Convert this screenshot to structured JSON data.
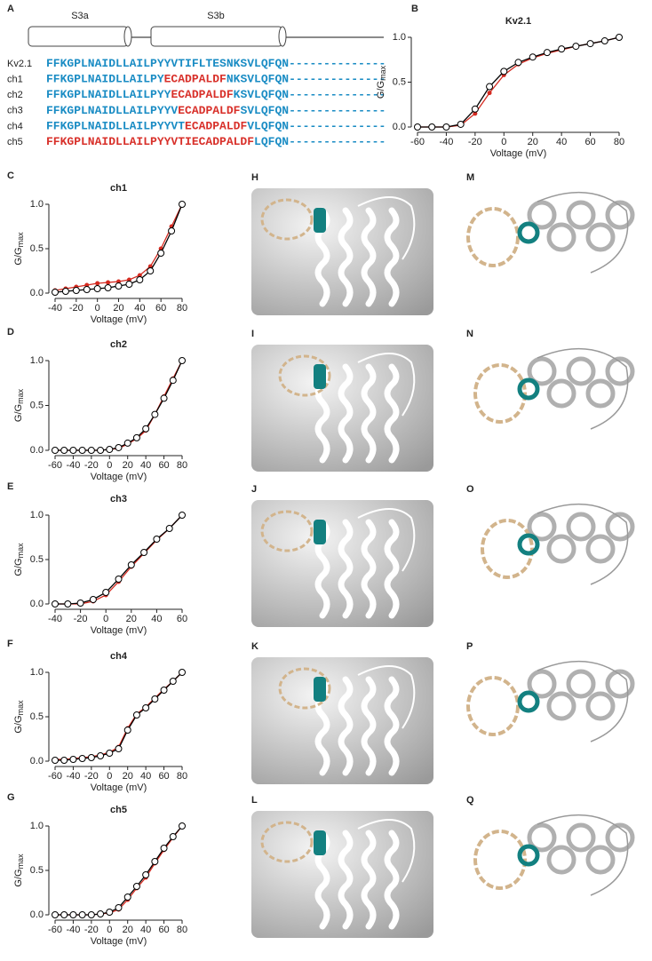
{
  "alignment": {
    "panel": "A",
    "domains": [
      "S3a",
      "S3b"
    ],
    "rows": [
      {
        "name": "Kv2.1",
        "segments": [
          {
            "text": "FFKGPLNAIDLLAILPYYVTIFLTESNKSVLQFQN",
            "color": "#1a8cc4"
          },
          {
            "text": "--------------",
            "color": "#1a8cc4"
          }
        ]
      },
      {
        "name": "ch1",
        "segments": [
          {
            "text": "FFKGPLNAIDLLAILPY",
            "color": "#1a8cc4"
          },
          {
            "text": "ECADPALDF",
            "color": "#d8302a"
          },
          {
            "text": "NKSVLQFQN",
            "color": "#1a8cc4"
          },
          {
            "text": "--------------",
            "color": "#1a8cc4"
          }
        ]
      },
      {
        "name": "ch2",
        "segments": [
          {
            "text": "FFKGPLNAIDLLAILPYY",
            "color": "#1a8cc4"
          },
          {
            "text": "ECADPALDF",
            "color": "#d8302a"
          },
          {
            "text": "KSVLQFQN",
            "color": "#1a8cc4"
          },
          {
            "text": "--------------",
            "color": "#1a8cc4"
          }
        ]
      },
      {
        "name": "ch3",
        "segments": [
          {
            "text": "FFKGPLNAIDLLAILPYYV",
            "color": "#1a8cc4"
          },
          {
            "text": "ECADPALDF",
            "color": "#d8302a"
          },
          {
            "text": "SVLQFQN",
            "color": "#1a8cc4"
          },
          {
            "text": "--------------",
            "color": "#1a8cc4"
          }
        ]
      },
      {
        "name": "ch4",
        "segments": [
          {
            "text": "FFKGPLNAIDLLAILPYYVT",
            "color": "#1a8cc4"
          },
          {
            "text": "ECADPALDF",
            "color": "#d8302a"
          },
          {
            "text": "VLQFQN",
            "color": "#1a8cc4"
          },
          {
            "text": "--------------",
            "color": "#1a8cc4"
          }
        ]
      },
      {
        "name": "ch5",
        "segments": [
          {
            "text": "FFKGPLNAIDLLAILPYYVTI",
            "color": "#d8302a"
          },
          {
            "text": "ECADPALDF",
            "color": "#d8302a"
          },
          {
            "text": "LQFQN",
            "color": "#1a8cc4"
          },
          {
            "text": "--------------",
            "color": "#1a8cc4"
          }
        ]
      }
    ]
  },
  "chart_data": [
    {
      "type": "line",
      "panel": "B",
      "title": "Kv2.1",
      "xlabel": "Voltage (mV)",
      "ylabel": "G/G",
      "ylabel_sub": "max",
      "x": [
        -60,
        -50,
        -40,
        -30,
        -20,
        -10,
        0,
        10,
        20,
        30,
        40,
        50,
        60,
        70,
        80
      ],
      "xlim": [
        -60,
        80
      ],
      "xticks": [
        -60,
        -40,
        -20,
        0,
        20,
        40,
        60,
        80
      ],
      "ylim": [
        0,
        1
      ],
      "yticks": [
        {
          "value": 0,
          "label": "0.0"
        },
        {
          "value": 0.5,
          "label": "0.5"
        },
        {
          "value": 1,
          "label": "1.0"
        }
      ],
      "series": [
        {
          "color": "#d42a20",
          "values": [
            0,
            0,
            0,
            0.02,
            0.15,
            0.38,
            0.58,
            0.7,
            0.77,
            0.82,
            0.86,
            0.9,
            0.93,
            0.96,
            1.0
          ]
        },
        {
          "color": "#000000",
          "marker": "circle",
          "values": [
            0,
            0,
            0,
            0.03,
            0.2,
            0.45,
            0.62,
            0.72,
            0.78,
            0.83,
            0.87,
            0.9,
            0.93,
            0.96,
            1.0
          ]
        }
      ]
    },
    {
      "type": "line",
      "panel": "C",
      "title": "ch1",
      "xlabel": "Voltage (mV)",
      "ylabel": "G/G",
      "ylabel_sub": "max",
      "x": [
        -40,
        -30,
        -20,
        -10,
        0,
        10,
        20,
        30,
        40,
        50,
        60,
        70,
        80
      ],
      "xlim": [
        -40,
        80
      ],
      "xticks": [
        -40,
        -20,
        0,
        20,
        40,
        60,
        80
      ],
      "ylim": [
        0,
        1
      ],
      "yticks": [
        {
          "value": 0,
          "label": "0.0"
        },
        {
          "value": 0.5,
          "label": "0.5"
        },
        {
          "value": 1,
          "label": "1.0"
        }
      ],
      "series": [
        {
          "color": "#d42a20",
          "values": [
            0.03,
            0.05,
            0.07,
            0.09,
            0.11,
            0.12,
            0.13,
            0.15,
            0.2,
            0.3,
            0.5,
            0.75,
            1.0
          ]
        },
        {
          "color": "#000000",
          "marker": "circle",
          "values": [
            0.01,
            0.02,
            0.03,
            0.04,
            0.05,
            0.06,
            0.08,
            0.1,
            0.15,
            0.25,
            0.45,
            0.7,
            1.0
          ]
        }
      ]
    },
    {
      "type": "line",
      "panel": "D",
      "title": "ch2",
      "xlabel": "Voltage (mV)",
      "ylabel": "G/G",
      "ylabel_sub": "max",
      "x": [
        -60,
        -50,
        -40,
        -30,
        -20,
        -10,
        0,
        10,
        20,
        30,
        40,
        50,
        60,
        70,
        80
      ],
      "xlim": [
        -60,
        80
      ],
      "xticks": [
        -60,
        -40,
        -20,
        0,
        20,
        40,
        60,
        80
      ],
      "ylim": [
        0,
        1
      ],
      "yticks": [
        {
          "value": 0,
          "label": "0.0"
        },
        {
          "value": 0.5,
          "label": "0.5"
        },
        {
          "value": 1,
          "label": "1.0"
        }
      ],
      "series": [
        {
          "color": "#d42a20",
          "values": [
            0,
            0,
            0,
            0,
            0,
            0,
            0.01,
            0.02,
            0.07,
            0.13,
            0.22,
            0.4,
            0.6,
            0.8,
            1.0
          ]
        },
        {
          "color": "#000000",
          "marker": "circle",
          "values": [
            0,
            0,
            0,
            0,
            0,
            0,
            0.01,
            0.03,
            0.08,
            0.14,
            0.24,
            0.4,
            0.58,
            0.78,
            1.0
          ]
        }
      ]
    },
    {
      "type": "line",
      "panel": "E",
      "title": "ch3",
      "xlabel": "Voltage (mV)",
      "ylabel": "G/G",
      "ylabel_sub": "max",
      "x": [
        -40,
        -30,
        -20,
        -10,
        0,
        10,
        20,
        30,
        40,
        50,
        60
      ],
      "xlim": [
        -40,
        60
      ],
      "xticks": [
        -40,
        -20,
        0,
        20,
        40,
        60
      ],
      "ylim": [
        0,
        1
      ],
      "yticks": [
        {
          "value": 0,
          "label": "0.0"
        },
        {
          "value": 0.5,
          "label": "0.5"
        },
        {
          "value": 1,
          "label": "1.0"
        }
      ],
      "series": [
        {
          "color": "#d42a20",
          "values": [
            0,
            0,
            0,
            0.03,
            0.1,
            0.25,
            0.42,
            0.57,
            0.72,
            0.85,
            1.0
          ]
        },
        {
          "color": "#000000",
          "marker": "circle",
          "values": [
            0,
            0,
            0.01,
            0.05,
            0.13,
            0.28,
            0.44,
            0.58,
            0.73,
            0.85,
            1.0
          ]
        }
      ]
    },
    {
      "type": "line",
      "panel": "F",
      "title": "ch4",
      "xlabel": "Voltage (mV)",
      "ylabel": "G/G",
      "ylabel_sub": "max",
      "x": [
        -60,
        -50,
        -40,
        -30,
        -20,
        -10,
        0,
        10,
        20,
        30,
        40,
        50,
        60,
        70,
        80
      ],
      "xlim": [
        -60,
        80
      ],
      "xticks": [
        -60,
        -40,
        -20,
        0,
        20,
        40,
        60,
        80
      ],
      "ylim": [
        0,
        1
      ],
      "yticks": [
        {
          "value": 0,
          "label": "0.0"
        },
        {
          "value": 0.5,
          "label": "0.5"
        },
        {
          "value": 1,
          "label": "1.0"
        }
      ],
      "series": [
        {
          "color": "#d42a20",
          "values": [
            0.02,
            0.02,
            0.03,
            0.04,
            0.05,
            0.07,
            0.1,
            0.16,
            0.37,
            0.53,
            0.61,
            0.71,
            0.81,
            0.9,
            1.0
          ]
        },
        {
          "color": "#000000",
          "marker": "circle",
          "values": [
            0.01,
            0.01,
            0.02,
            0.03,
            0.04,
            0.06,
            0.09,
            0.14,
            0.35,
            0.52,
            0.6,
            0.7,
            0.8,
            0.9,
            1.0
          ]
        }
      ]
    },
    {
      "type": "line",
      "panel": "G",
      "title": "ch5",
      "xlabel": "Voltage (mV)",
      "ylabel": "G/G",
      "ylabel_sub": "max",
      "x": [
        -60,
        -50,
        -40,
        -30,
        -20,
        -10,
        0,
        10,
        20,
        30,
        40,
        50,
        60,
        70,
        80
      ],
      "xlim": [
        -60,
        80
      ],
      "xticks": [
        -60,
        -40,
        -20,
        0,
        20,
        40,
        60,
        80
      ],
      "ylim": [
        0,
        1
      ],
      "yticks": [
        {
          "value": 0,
          "label": "0.0"
        },
        {
          "value": 0.5,
          "label": "0.5"
        },
        {
          "value": 1,
          "label": "1.0"
        }
      ],
      "series": [
        {
          "color": "#d42a20",
          "values": [
            0,
            0,
            0,
            0,
            0,
            0.01,
            0.02,
            0.06,
            0.17,
            0.3,
            0.42,
            0.58,
            0.73,
            0.87,
            1.0
          ]
        },
        {
          "color": "#000000",
          "marker": "circle",
          "values": [
            0,
            0,
            0,
            0,
            0,
            0.01,
            0.03,
            0.08,
            0.2,
            0.32,
            0.45,
            0.6,
            0.75,
            0.88,
            1.0
          ]
        }
      ]
    }
  ],
  "structure_panels": [
    {
      "label": "H"
    },
    {
      "label": "I"
    },
    {
      "label": "J"
    },
    {
      "label": "K"
    },
    {
      "label": "L"
    },
    {
      "label": "M"
    },
    {
      "label": "N"
    },
    {
      "label": "O"
    },
    {
      "label": "P"
    },
    {
      "label": "Q"
    }
  ]
}
